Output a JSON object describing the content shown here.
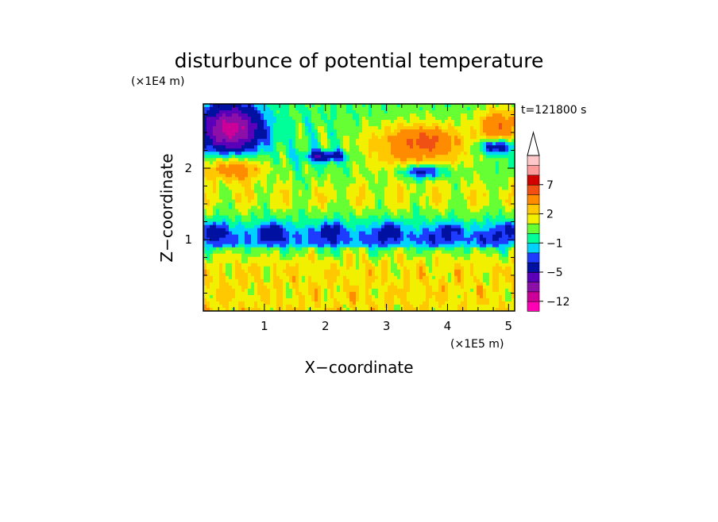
{
  "chart_data": {
    "type": "heatmap",
    "title": "disturbunce of potential temperature",
    "xlabel": "X−coordinate",
    "ylabel": "Z−coordinate",
    "x_unit": "(×1E5 m)",
    "y_unit": "(×1E4 m)",
    "time_label": "t=121800 s",
    "xlim": [
      0,
      5.1
    ],
    "ylim": [
      0,
      2.9
    ],
    "x_ticks": [
      {
        "v": 1,
        "label": "1"
      },
      {
        "v": 2,
        "label": "2"
      },
      {
        "v": 3,
        "label": "3"
      },
      {
        "v": 4,
        "label": "4"
      },
      {
        "v": 5,
        "label": "5"
      }
    ],
    "y_ticks": [
      {
        "v": 1,
        "label": "1"
      },
      {
        "v": 2,
        "label": "2"
      }
    ],
    "colorbar": {
      "levels": [
        -12,
        -9,
        -7,
        -5,
        -3,
        -2,
        -1,
        0,
        1,
        2,
        3,
        5,
        7,
        9,
        11
      ],
      "colors": [
        "#ff00b4",
        "#cc0099",
        "#8c10a8",
        "#5a00b8",
        "#0010a0",
        "#1e3cff",
        "#00d2ff",
        "#00ff98",
        "#66ff33",
        "#f0f000",
        "#ffc800",
        "#ff8c00",
        "#f05014",
        "#d20000",
        "#ff9a9a",
        "#ffc8c8"
      ],
      "tick_labels": [
        {
          "v": -12,
          "label": "−12"
        },
        {
          "v": -5,
          "label": "−5"
        },
        {
          "v": -1,
          "label": "−1"
        },
        {
          "v": 2,
          "label": "2"
        },
        {
          "v": 7,
          "label": "7"
        }
      ],
      "extend_max": true
    }
  }
}
